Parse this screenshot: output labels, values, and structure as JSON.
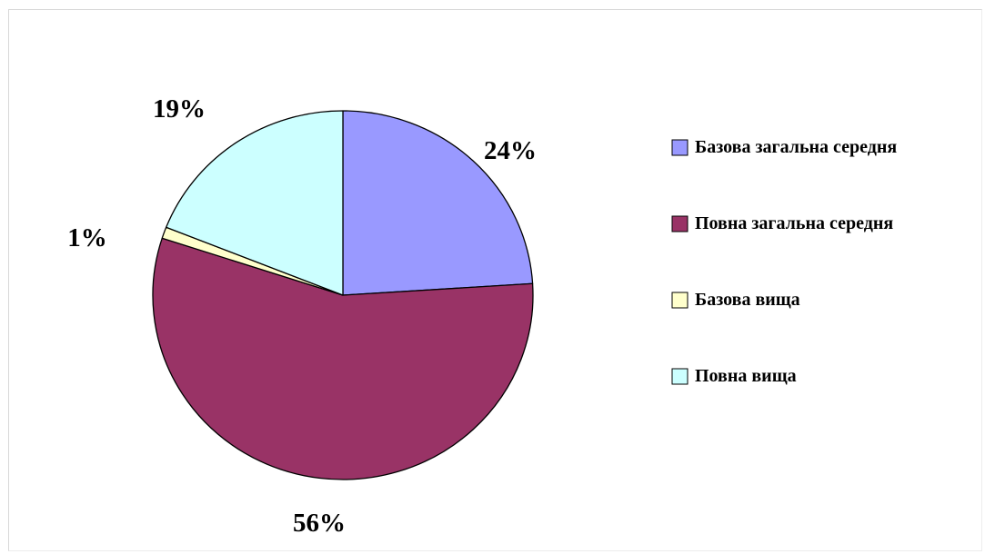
{
  "chart_data": {
    "type": "pie",
    "title": "",
    "categories": [
      "Базова загальна середня",
      "Повна загальна середня",
      "Базова вища",
      "Повна вища"
    ],
    "values": [
      24,
      56,
      1,
      19
    ],
    "labels": [
      "24%",
      "56%",
      "1%",
      "19%"
    ],
    "colors": [
      "#9999ff",
      "#993366",
      "#ffffcc",
      "#ccffff"
    ],
    "legend_position": "right",
    "start_angle_deg": 0,
    "direction": "clockwise",
    "grid": false
  }
}
